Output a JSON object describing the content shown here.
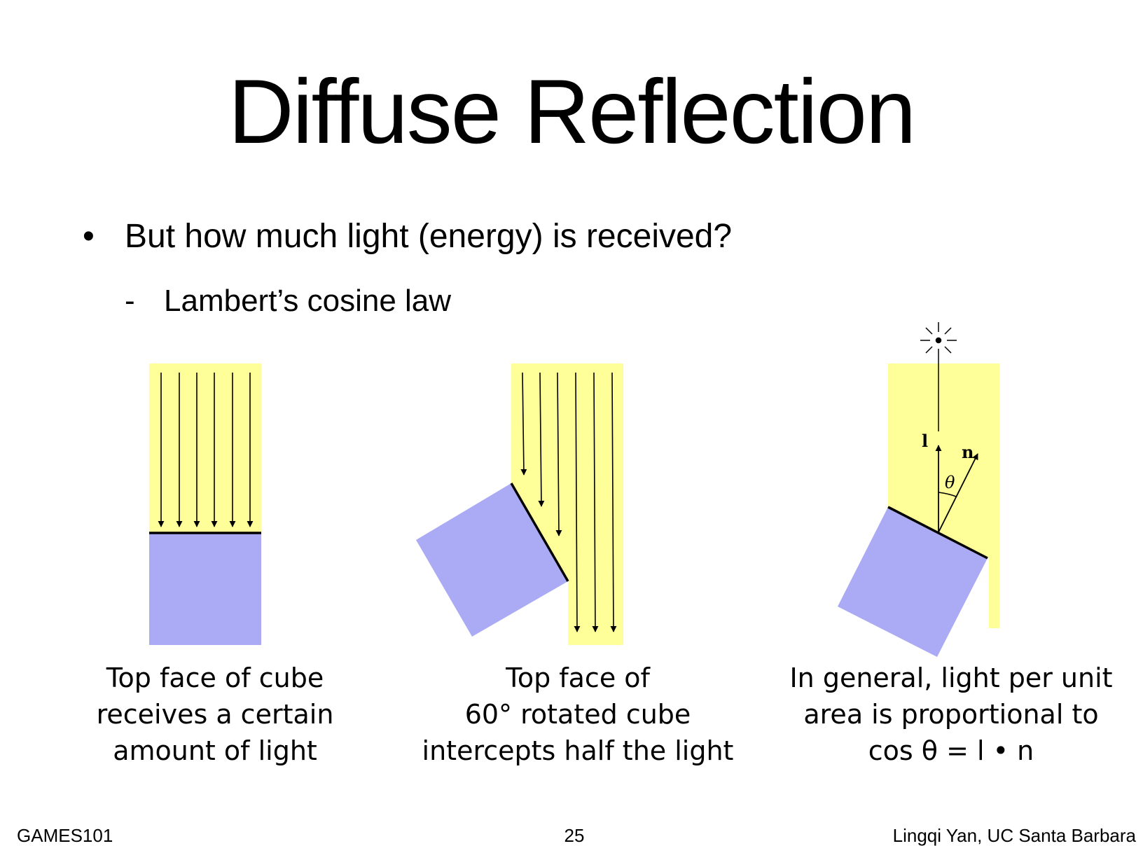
{
  "slide": {
    "title": "Diffuse Reflection",
    "bullet": "But how much light (energy) is received?",
    "bullet_marker": "•",
    "sub_bullet": "Lambert’s cosine law",
    "sub_marker": "-"
  },
  "figures": {
    "left_caption": [
      "Top face of cube",
      "receives a certain",
      "amount of light"
    ],
    "middle_caption": [
      "Top face of",
      "60° rotated cube",
      "intercepts half the light"
    ],
    "right_caption": [
      "In general, light per unit",
      "area is proportional to",
      "cos θ = l • n"
    ],
    "label_l": "l",
    "label_n": "n",
    "label_theta": "θ",
    "colors": {
      "light": "#ffff99",
      "cube": "#aaaaf5",
      "line": "#000000"
    }
  },
  "footer": {
    "left": "GAMES101",
    "center": "25",
    "right": "Lingqi Yan, UC Santa Barbara"
  }
}
